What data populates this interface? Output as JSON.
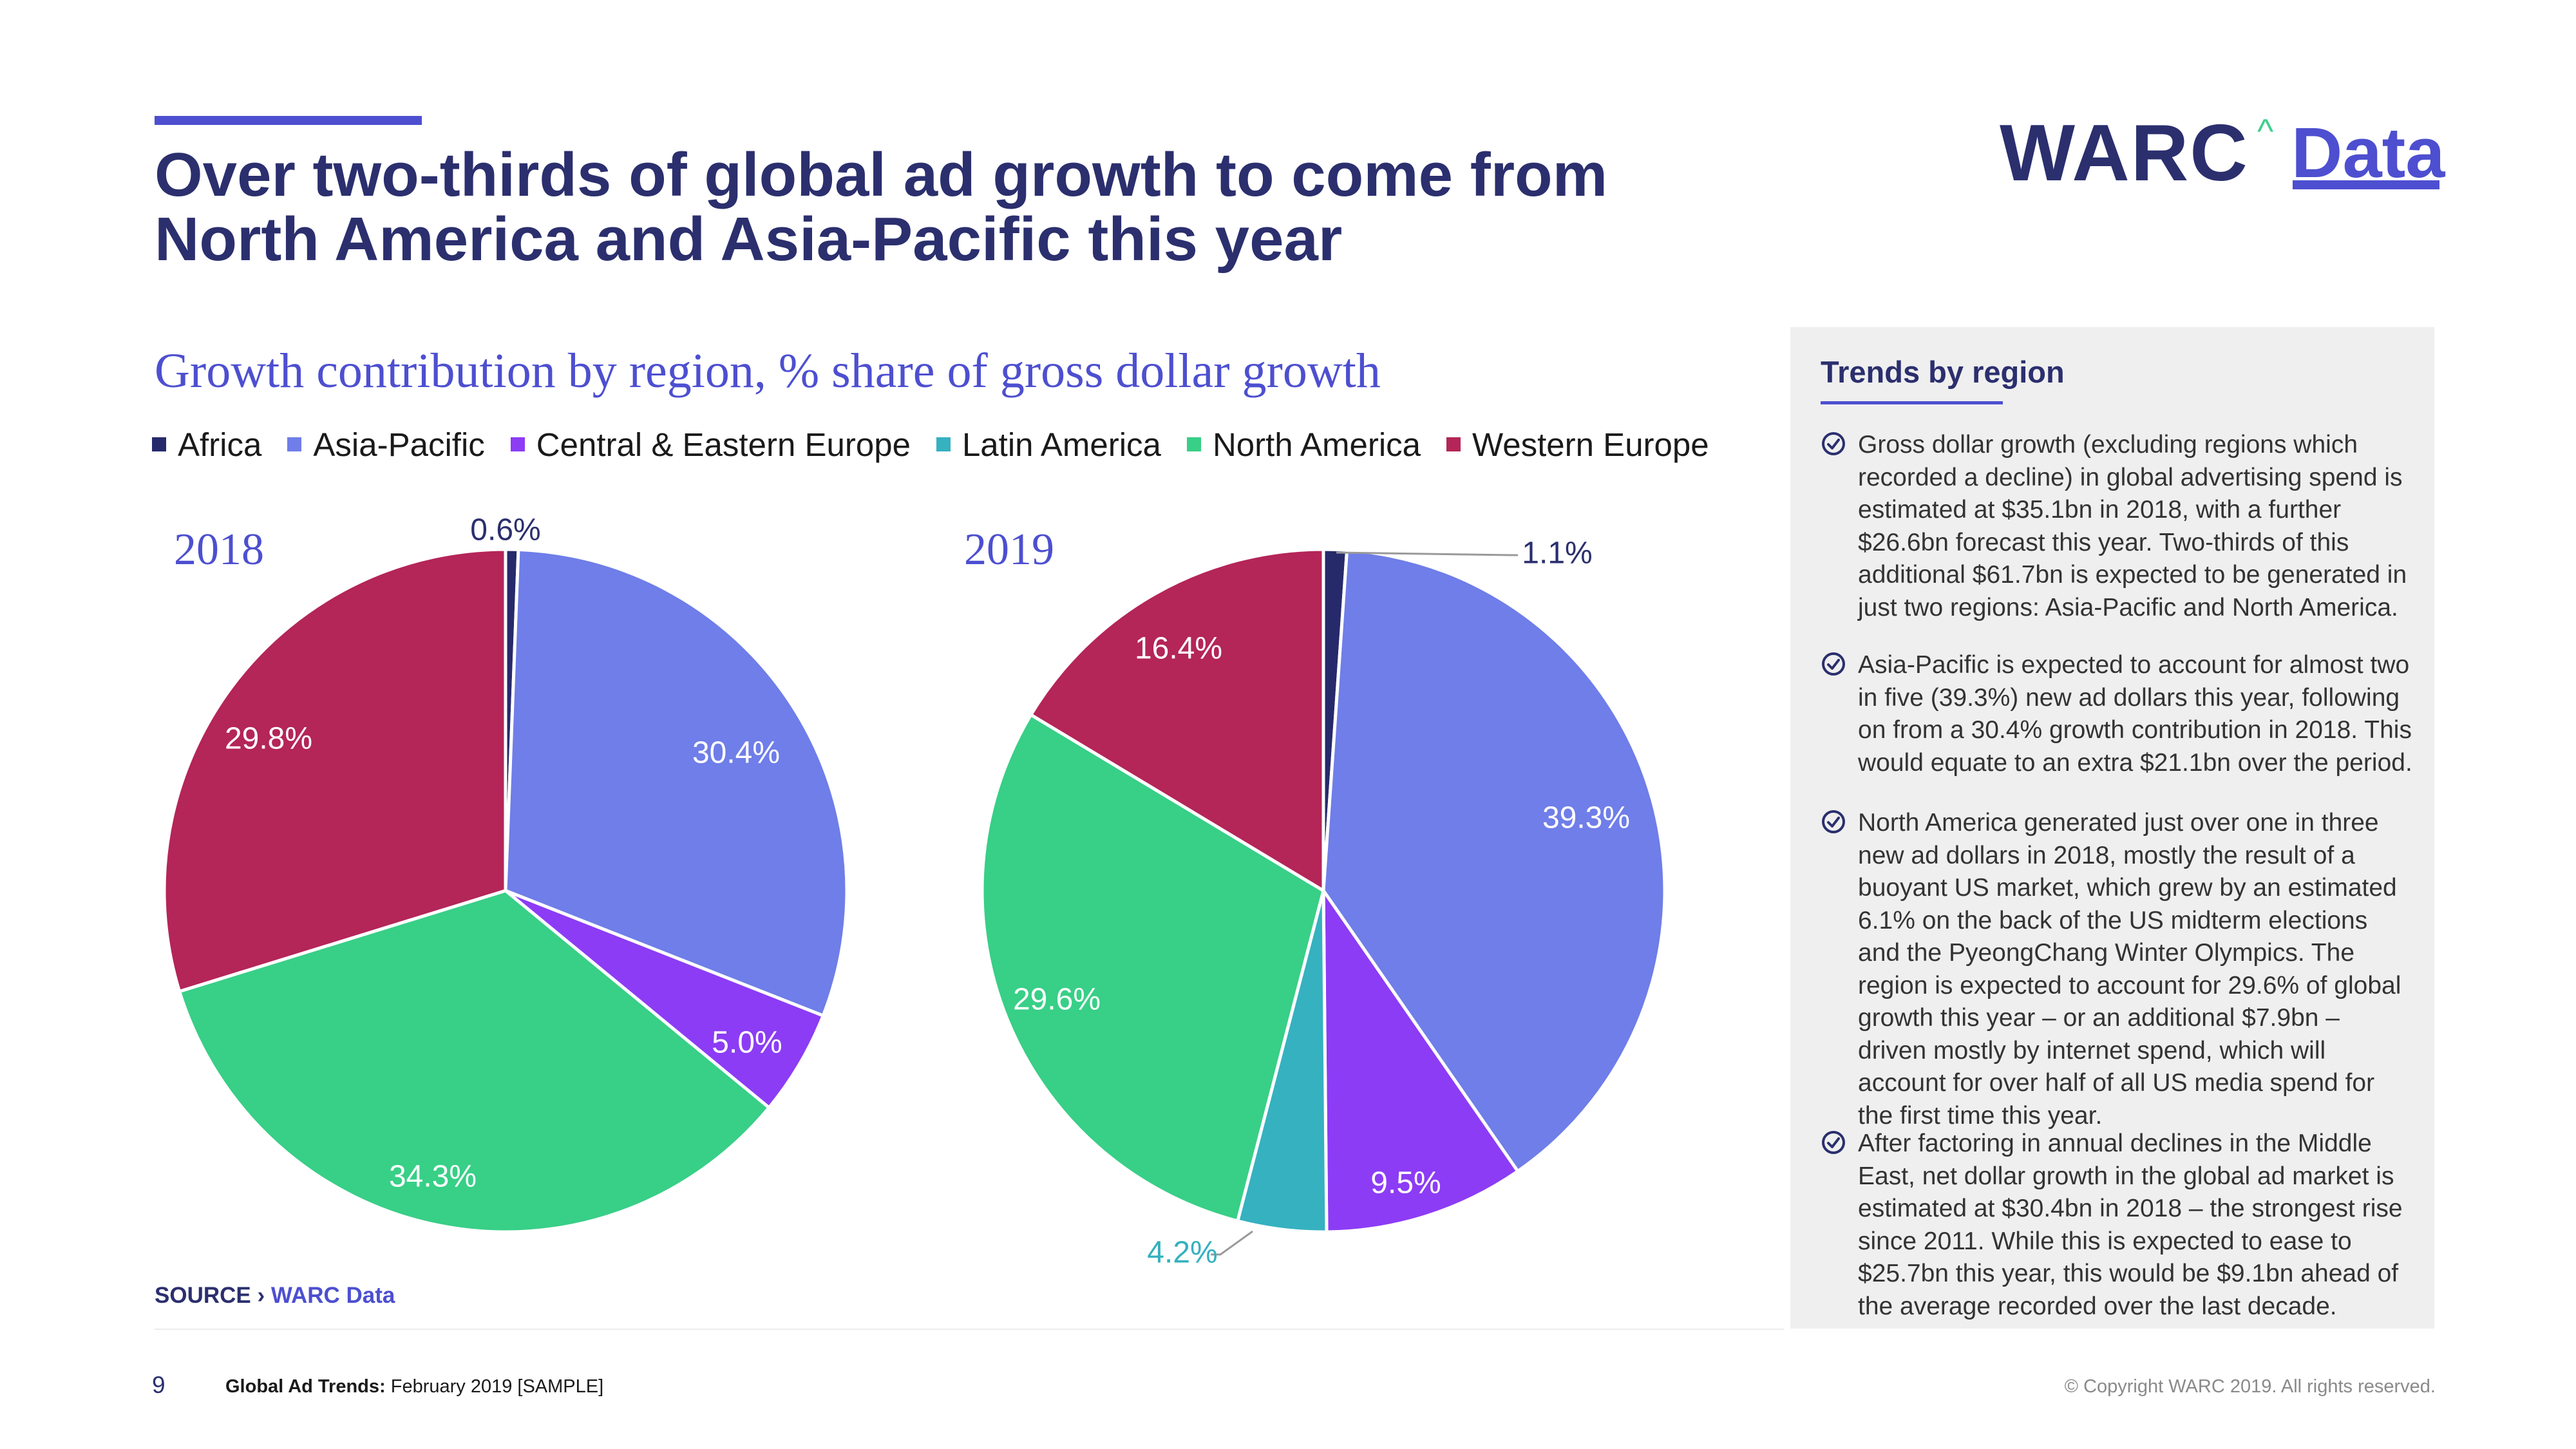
{
  "header": {
    "title_line1": "Over two-thirds of global ad growth to come from",
    "title_line2": "North America and Asia-Pacific this year"
  },
  "logo": {
    "brand": "WARC",
    "caret": "^",
    "product": "Data"
  },
  "colors": {
    "Africa": "#262a6b",
    "Asia-Pacific": "#6f7ee8",
    "Central & Eastern Europe": "#8c3cf5",
    "Latin America": "#35b1c0",
    "North America": "#38cf87",
    "Western Europe": "#b42558",
    "title": "#2b2f6e",
    "accent": "#4d4fd0"
  },
  "chart_data": [
    {
      "type": "pie",
      "title": "Growth contribution by region, % share of gross dollar growth",
      "year_label": "2018",
      "categories": [
        "Africa",
        "Asia-Pacific",
        "Central & Eastern Europe",
        "North America",
        "Western Europe"
      ],
      "values": [
        0.6,
        30.4,
        5.0,
        34.3,
        29.8
      ],
      "labels": [
        "0.6%",
        "30.4%",
        "5.0%",
        "34.3%",
        "29.8%"
      ],
      "start_angle_deg": 0,
      "direction": "clockwise"
    },
    {
      "type": "pie",
      "title": "Growth contribution by region, % share of gross dollar growth",
      "year_label": "2019",
      "categories": [
        "Africa",
        "Asia-Pacific",
        "Central & Eastern Europe",
        "Latin America",
        "North America",
        "Western Europe"
      ],
      "values": [
        1.1,
        39.3,
        9.5,
        4.2,
        29.6,
        16.4
      ],
      "labels": [
        "1.1%",
        "39.3%",
        "9.5%",
        "4.2%",
        "29.6%",
        "16.4%"
      ],
      "start_angle_deg": 0,
      "direction": "clockwise"
    }
  ],
  "chart": {
    "subtitle": "Growth contribution by region, % share of gross dollar growth",
    "legend": [
      "Africa",
      "Asia-Pacific",
      "Central & Eastern Europe",
      "Latin America",
      "North America",
      "Western Europe"
    ]
  },
  "source": {
    "prefix": "SOURCE › ",
    "name": "WARC Data"
  },
  "sidebar": {
    "heading": "Trends by region",
    "bullets": [
      "Gross dollar growth (excluding regions which recorded a decline) in global advertising spend is estimated at $35.1bn in 2018, with a further $26.6bn forecast this year. Two-thirds of this additional $61.7bn is expected to be generated in just two regions: Asia-Pacific and North America.",
      "Asia-Pacific is expected to account for almost two in five (39.3%) new ad dollars this year, following on from a 30.4% growth contribution in 2018. This would equate to an extra $21.1bn over the period.",
      "North America generated just over one in three new ad dollars in 2018, mostly the result of a buoyant US market, which grew by an estimated 6.1% on the back of the US midterm elections and the PyeongChang Winter Olympics. The region is expected to account for 29.6% of global growth this year – or an additional $7.9bn – driven mostly by internet spend, which will account for over half of all US media spend for the first time this year.",
      "After factoring in annual declines in the Middle East, net dollar growth in the global ad market is estimated at $30.4bn in 2018 – the strongest rise since 2011. While this is expected to ease to $25.7bn this year, this would be $9.1bn ahead of the average recorded over the last decade."
    ]
  },
  "footer": {
    "page_number": "9",
    "publication": "Global Ad Trends:",
    "edition": " February 2019 [SAMPLE]",
    "copyright": "© Copyright WARC 2019. All rights reserved."
  }
}
